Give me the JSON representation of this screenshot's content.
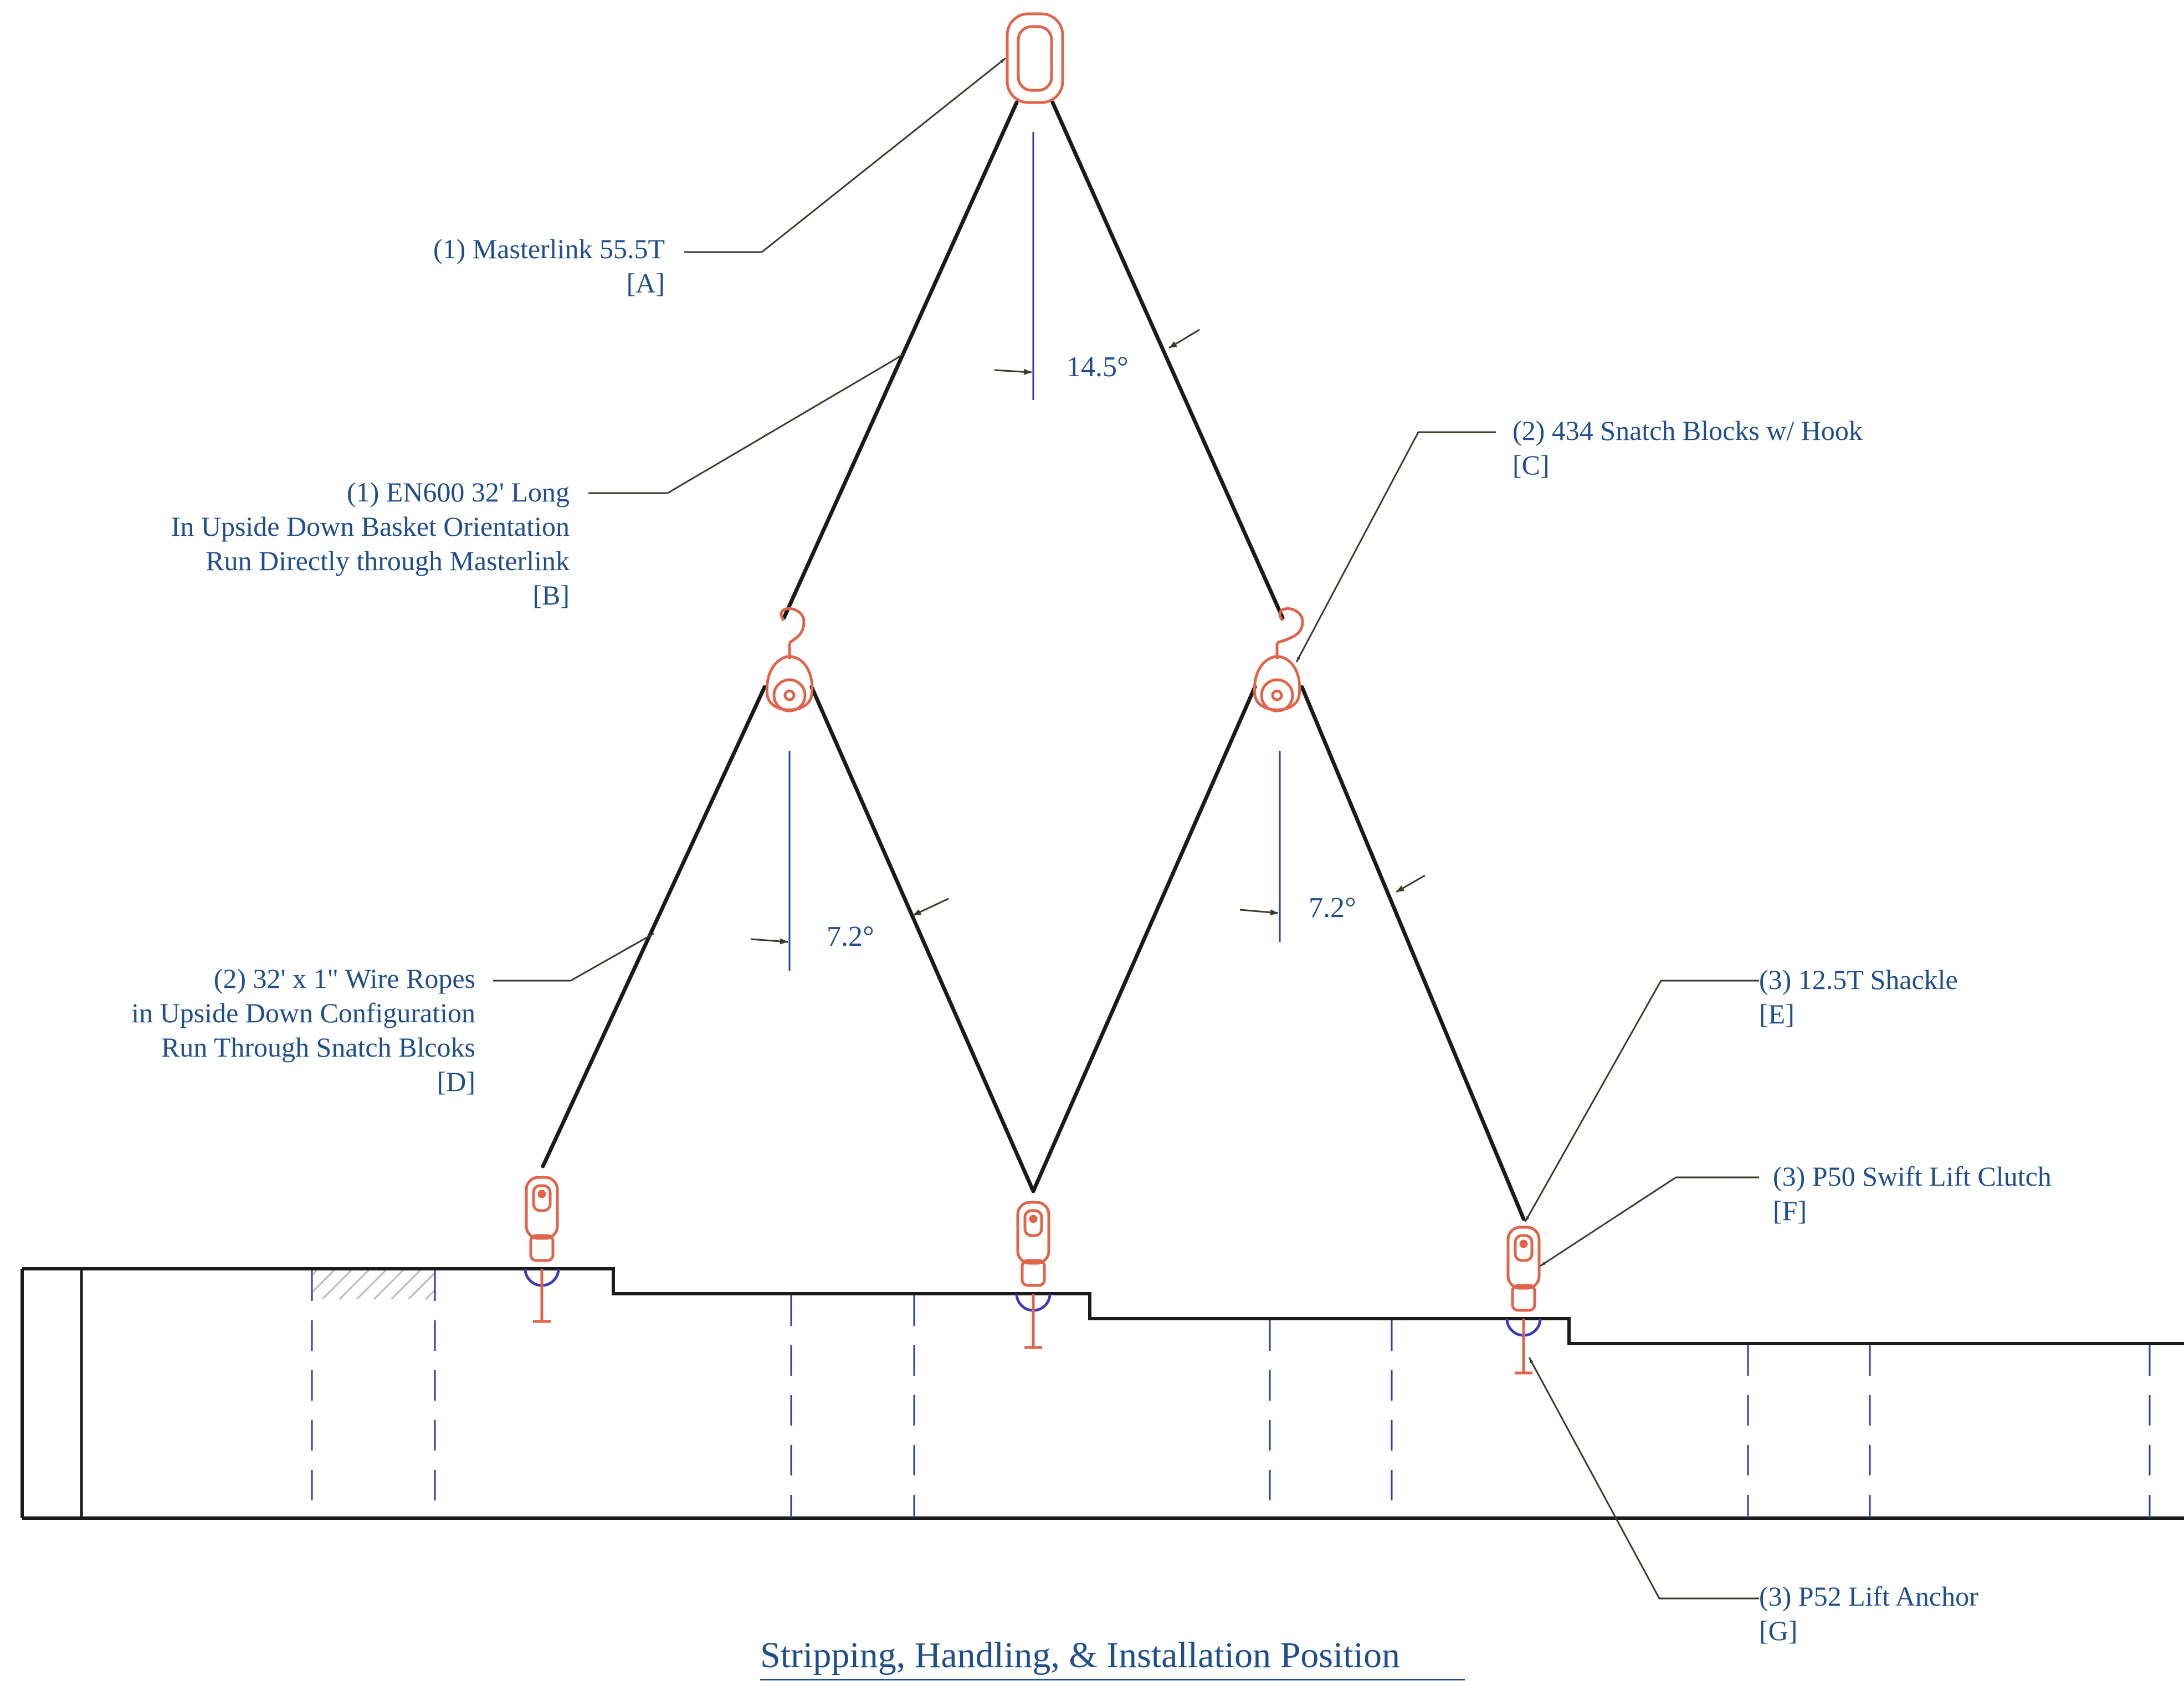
{
  "title": "Stripping, Handling, & Installation Position",
  "callouts": {
    "A": {
      "line1": "(1) Masterlink 55.5T",
      "tag": "[A]"
    },
    "B": {
      "line1": "(1) EN600 32' Long",
      "line2": "In Upside Down Basket Orientation",
      "line3": "Run Directly through Masterlink",
      "tag": "[B]"
    },
    "C": {
      "line1": "(2) 434 Snatch Blocks w/ Hook",
      "tag": "[C]"
    },
    "D": {
      "line1": "(2) 32' x 1\" Wire Ropes",
      "line2": "in Upside Down Configuration",
      "line3": "Run Through Snatch Blcoks",
      "tag": "[D]"
    },
    "E": {
      "line1": "(3) 12.5T Shackle",
      "tag": "[E]"
    },
    "F": {
      "line1": "(3) P50 Swift Lift Clutch",
      "tag": "[F]"
    },
    "G": {
      "line1": "(3) P52 Lift Anchor",
      "tag": "[G]"
    }
  },
  "angles": {
    "top": "14.5°",
    "left": "7.2°",
    "right": "7.2°"
  },
  "colors": {
    "rope": "#1a1a1a",
    "hardware": "#e0644a",
    "annotation_text": "#1f4e8c",
    "leader": "#3a3a2a",
    "hidden_line": "#2a3fa0",
    "anchor_bearing": "#3b3bb5"
  }
}
